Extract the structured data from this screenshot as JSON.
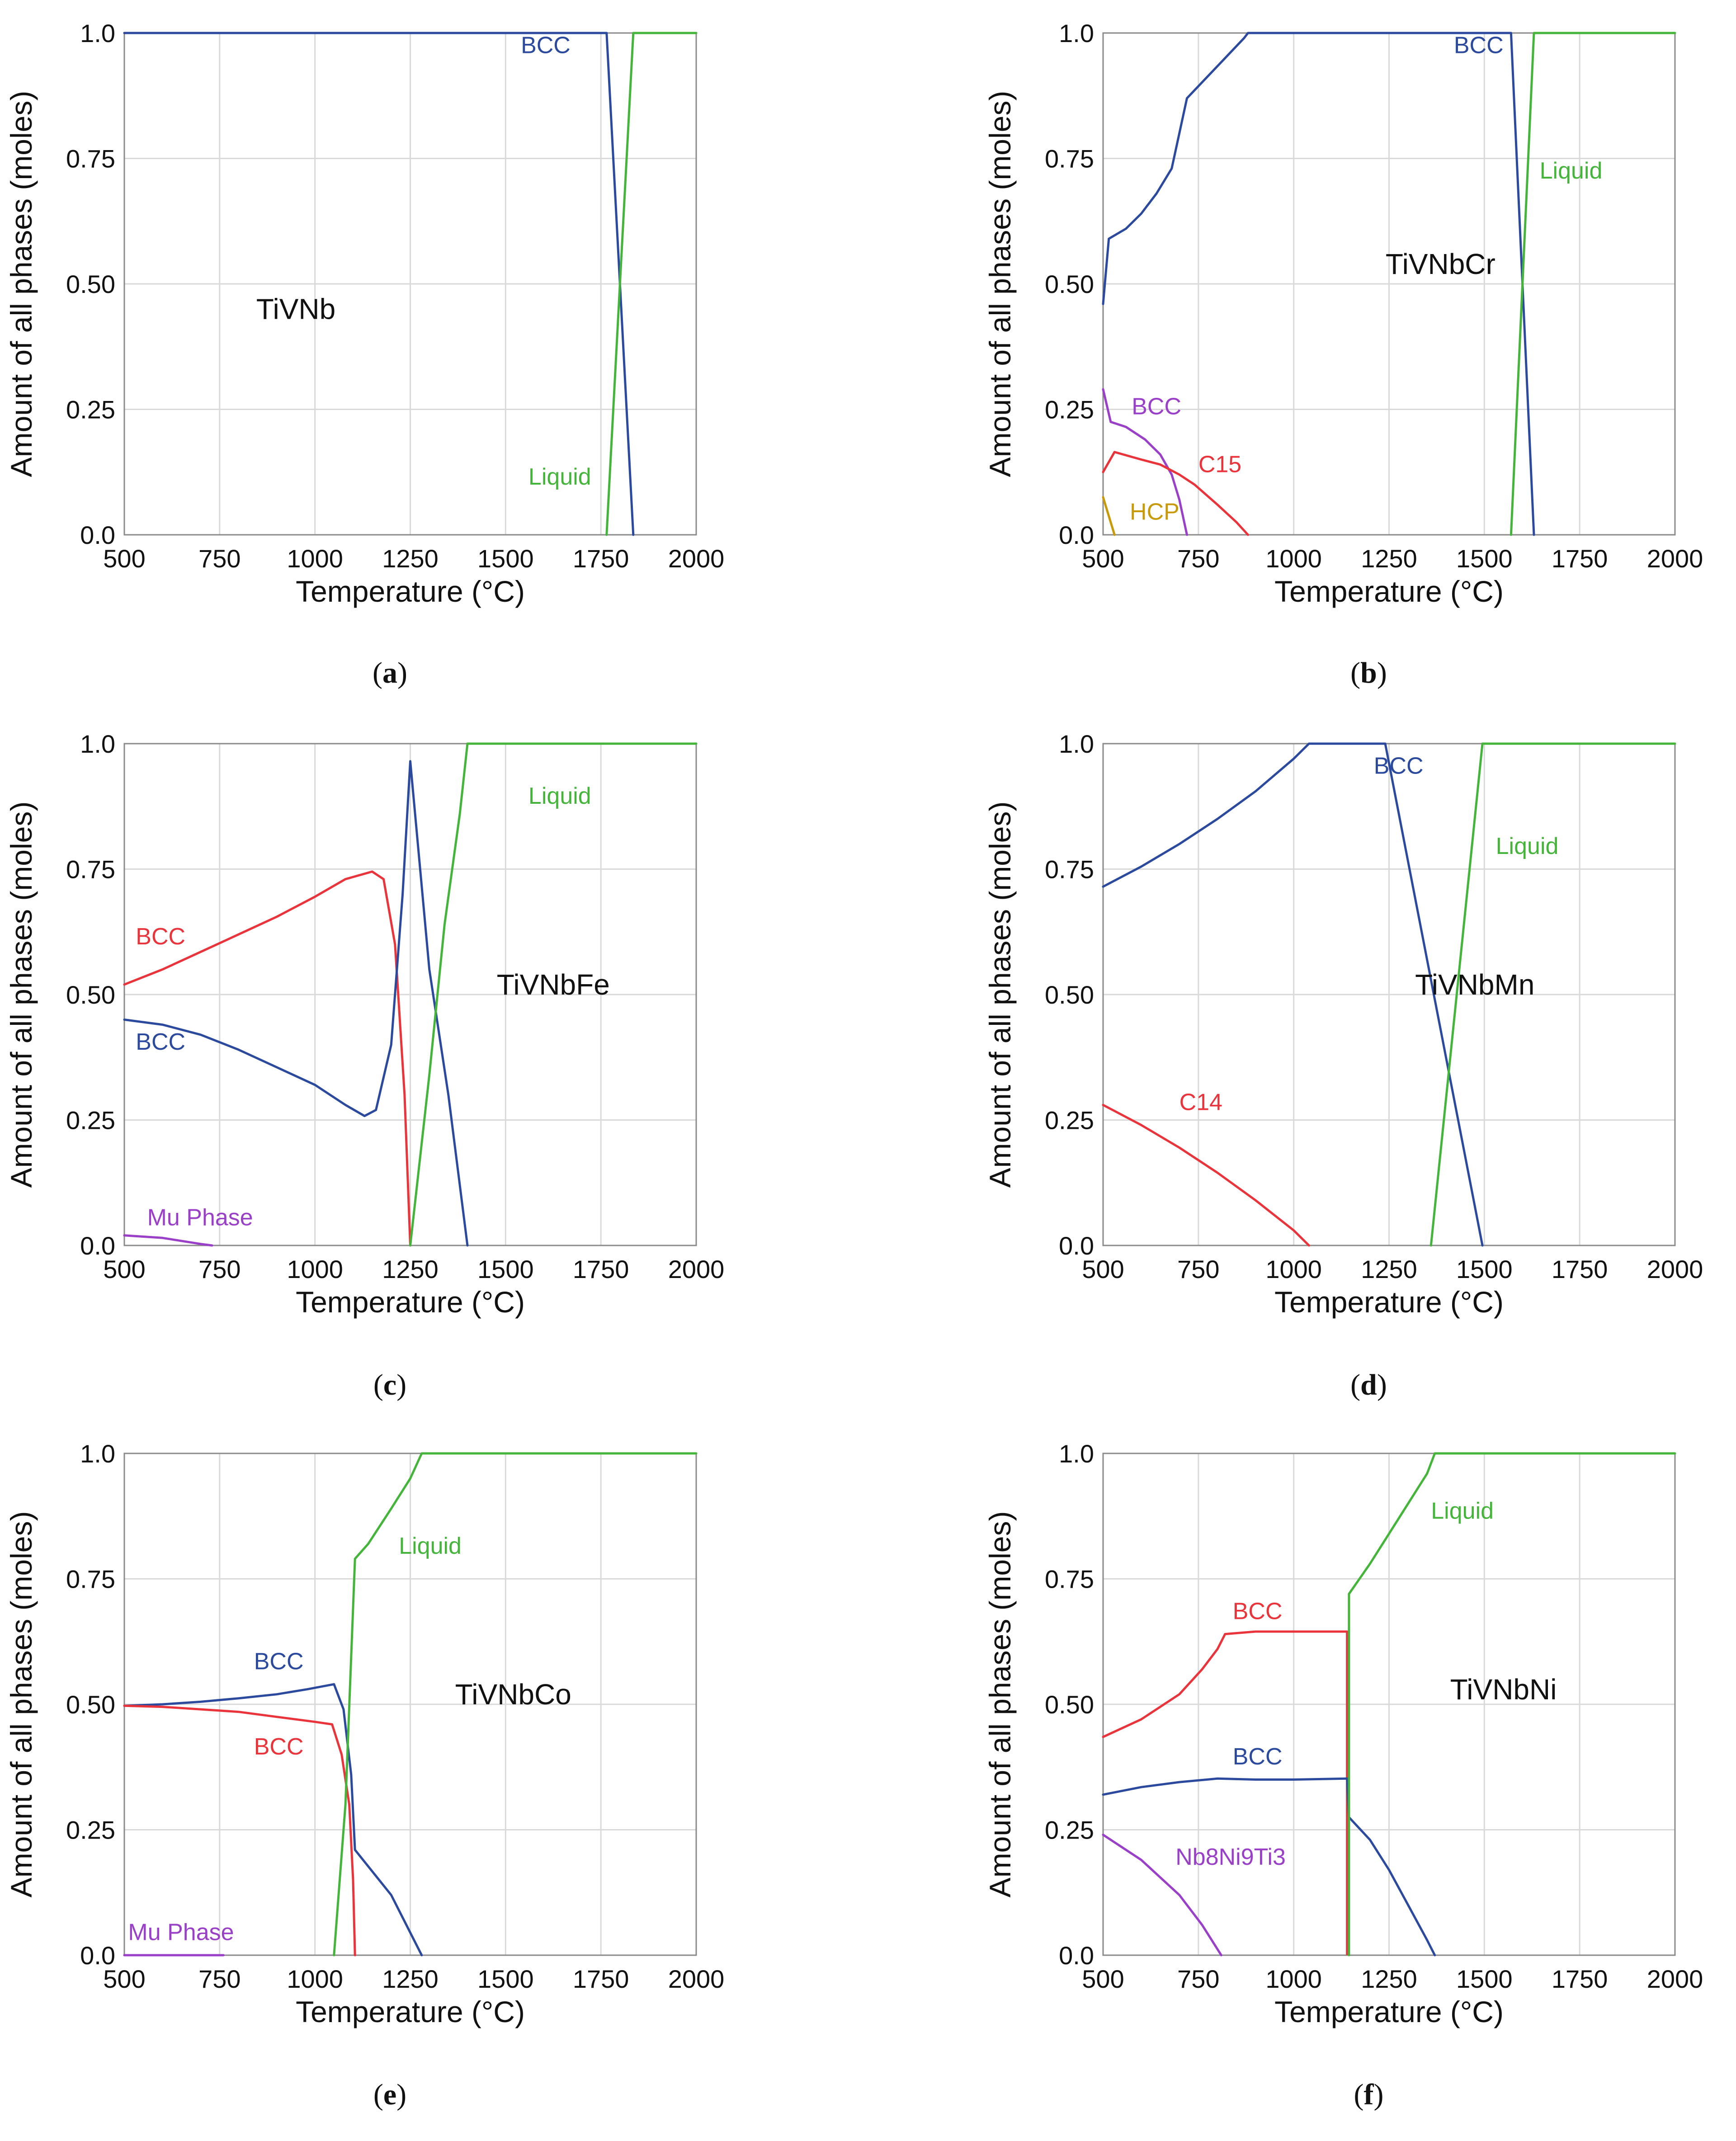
{
  "colors": {
    "blue": "#2b4a9e",
    "green": "#44b53a",
    "red": "#e8343a",
    "purple": "#9a3fc7",
    "hcp": "#c89a0a",
    "grid": "#d9d9d9",
    "axis": "#8a8a8a"
  },
  "chart_data": [
    {
      "panel": "a",
      "caption_prefix": "(",
      "caption_letter": "a",
      "caption_suffix": ")",
      "type": "line",
      "alloy": "TiVNb",
      "xlabel": "Temperature (°C)",
      "ylabel": "Amount of all phases (moles)",
      "xlim": [
        500,
        2000
      ],
      "ylim": [
        0,
        1
      ],
      "xticks": [
        "500",
        "750",
        "1000",
        "1250",
        "1500",
        "1750",
        "2000"
      ],
      "yticks": [
        "0.0",
        "0.25",
        "0.50",
        "0.75",
        "1.0"
      ],
      "grid": true,
      "series": [
        {
          "name": "BCC",
          "color": "blue",
          "label_at": [
            1540,
            0.96
          ],
          "label_anchor": "start",
          "points": [
            [
              500,
              1
            ],
            [
              1765,
              1
            ],
            [
              1835,
              0
            ]
          ]
        },
        {
          "name": "Liquid",
          "color": "green",
          "label_at": [
            1560,
            0.1
          ],
          "label_anchor": "start",
          "points": [
            [
              1765,
              0
            ],
            [
              1835,
              1
            ],
            [
              2000,
              1
            ]
          ]
        }
      ]
    },
    {
      "panel": "b",
      "caption_prefix": "(",
      "caption_letter": "b",
      "caption_suffix": ")",
      "type": "line",
      "alloy": "TiVNbCr",
      "xlabel": "Temperature (°C)",
      "ylabel": "Amount of all phases (moles)",
      "xlim": [
        500,
        2000
      ],
      "ylim": [
        0,
        1
      ],
      "xticks": [
        "500",
        "750",
        "1000",
        "1250",
        "1500",
        "1750",
        "2000"
      ],
      "yticks": [
        "0.0",
        "0.25",
        "0.50",
        "0.75",
        "1.0"
      ],
      "grid": true,
      "series": [
        {
          "name": "BCC",
          "color": "blue",
          "label_at": [
            1420,
            0.96
          ],
          "label_anchor": "start",
          "points": [
            [
              500,
              0.46
            ],
            [
              515,
              0.59
            ],
            [
              560,
              0.61
            ],
            [
              600,
              0.64
            ],
            [
              640,
              0.68
            ],
            [
              680,
              0.73
            ],
            [
              720,
              0.87
            ],
            [
              770,
              0.91
            ],
            [
              820,
              0.95
            ],
            [
              870,
              0.99
            ],
            [
              880,
              1
            ],
            [
              1570,
              1
            ],
            [
              1630,
              0
            ]
          ]
        },
        {
          "name": "Liquid",
          "color": "green",
          "label_at": [
            1645,
            0.71
          ],
          "label_anchor": "start",
          "points": [
            [
              1570,
              0
            ],
            [
              1630,
              1
            ],
            [
              2000,
              1
            ]
          ]
        },
        {
          "name": "BCC",
          "color": "purple",
          "label_at": [
            575,
            0.24
          ],
          "label_anchor": "start",
          "points": [
            [
              500,
              0.29
            ],
            [
              520,
              0.225
            ],
            [
              560,
              0.215
            ],
            [
              610,
              0.19
            ],
            [
              650,
              0.16
            ],
            [
              680,
              0.12
            ],
            [
              700,
              0.07
            ],
            [
              720,
              0
            ]
          ]
        },
        {
          "name": "C15",
          "color": "red",
          "label_at": [
            750,
            0.125
          ],
          "label_anchor": "start",
          "points": [
            [
              500,
              0.125
            ],
            [
              530,
              0.165
            ],
            [
              600,
              0.15
            ],
            [
              650,
              0.14
            ],
            [
              700,
              0.12
            ],
            [
              740,
              0.1
            ],
            [
              800,
              0.06
            ],
            [
              850,
              0.025
            ],
            [
              880,
              0
            ]
          ]
        },
        {
          "name": "HCP",
          "color": "hcp",
          "label_at": [
            570,
            0.03
          ],
          "label_anchor": "start",
          "points": [
            [
              500,
              0.075
            ],
            [
              530,
              0
            ]
          ]
        }
      ]
    },
    {
      "panel": "c",
      "caption_prefix": "(",
      "caption_letter": "c",
      "caption_suffix": ")",
      "type": "line",
      "alloy": "TiVNbFe",
      "xlabel": "Temperature (°C)",
      "ylabel": "Amount of all phases (moles)",
      "xlim": [
        500,
        2000
      ],
      "ylim": [
        0,
        1
      ],
      "xticks": [
        "500",
        "750",
        "1000",
        "1250",
        "1500",
        "1750",
        "2000"
      ],
      "yticks": [
        "0.0",
        "0.25",
        "0.50",
        "0.75",
        "1.0"
      ],
      "grid": true,
      "series": [
        {
          "name": "BCC",
          "color": "red",
          "label_at": [
            530,
            0.6
          ],
          "label_anchor": "start",
          "points": [
            [
              500,
              0.52
            ],
            [
              600,
              0.55
            ],
            [
              700,
              0.585
            ],
            [
              800,
              0.62
            ],
            [
              900,
              0.655
            ],
            [
              1000,
              0.695
            ],
            [
              1080,
              0.73
            ],
            [
              1150,
              0.745
            ],
            [
              1180,
              0.73
            ],
            [
              1210,
              0.6
            ],
            [
              1235,
              0.3
            ],
            [
              1250,
              0
            ]
          ]
        },
        {
          "name": "BCC",
          "color": "blue",
          "label_at": [
            530,
            0.39
          ],
          "label_anchor": "start",
          "points": [
            [
              500,
              0.45
            ],
            [
              600,
              0.44
            ],
            [
              700,
              0.42
            ],
            [
              800,
              0.39
            ],
            [
              900,
              0.355
            ],
            [
              1000,
              0.32
            ],
            [
              1080,
              0.28
            ],
            [
              1130,
              0.258
            ],
            [
              1160,
              0.27
            ],
            [
              1200,
              0.4
            ],
            [
              1230,
              0.7
            ],
            [
              1250,
              0.965
            ],
            [
              1300,
              0.55
            ],
            [
              1350,
              0.3
            ],
            [
              1400,
              0
            ]
          ]
        },
        {
          "name": "Liquid",
          "color": "green",
          "label_at": [
            1560,
            0.88
          ],
          "label_anchor": "start",
          "points": [
            [
              1250,
              0
            ],
            [
              1300,
              0.34
            ],
            [
              1340,
              0.64
            ],
            [
              1380,
              0.86
            ],
            [
              1400,
              1
            ],
            [
              2000,
              1
            ]
          ]
        },
        {
          "name": "Mu Phase",
          "color": "purple",
          "label_at": [
            560,
            0.04
          ],
          "label_anchor": "start",
          "points": [
            [
              500,
              0.02
            ],
            [
              600,
              0.015
            ],
            [
              700,
              0.003
            ],
            [
              730,
              0
            ]
          ]
        }
      ]
    },
    {
      "panel": "d",
      "caption_prefix": "(",
      "caption_letter": "d",
      "caption_suffix": ")",
      "type": "line",
      "alloy": "TiVNbMn",
      "xlabel": "Temperature (°C)",
      "ylabel": "Amount of all phases (moles)",
      "xlim": [
        500,
        2000
      ],
      "ylim": [
        0,
        1
      ],
      "xticks": [
        "500",
        "750",
        "1000",
        "1250",
        "1500",
        "1750",
        "2000"
      ],
      "yticks": [
        "0.0",
        "0.25",
        "0.50",
        "0.75",
        "1.0"
      ],
      "grid": true,
      "series": [
        {
          "name": "BCC",
          "color": "blue",
          "label_at": [
            1210,
            0.94
          ],
          "label_anchor": "start",
          "points": [
            [
              500,
              0.715
            ],
            [
              600,
              0.755
            ],
            [
              700,
              0.8
            ],
            [
              800,
              0.85
            ],
            [
              900,
              0.905
            ],
            [
              1000,
              0.97
            ],
            [
              1040,
              1
            ],
            [
              1240,
              1
            ],
            [
              1495,
              0
            ]
          ]
        },
        {
          "name": "Liquid",
          "color": "green",
          "label_at": [
            1530,
            0.78
          ],
          "label_anchor": "start",
          "points": [
            [
              1360,
              0
            ],
            [
              1495,
              1
            ],
            [
              2000,
              1
            ]
          ]
        },
        {
          "name": "C14",
          "color": "red",
          "label_at": [
            700,
            0.27
          ],
          "label_anchor": "start",
          "points": [
            [
              500,
              0.28
            ],
            [
              600,
              0.24
            ],
            [
              700,
              0.195
            ],
            [
              800,
              0.145
            ],
            [
              900,
              0.09
            ],
            [
              1000,
              0.03
            ],
            [
              1040,
              0
            ]
          ]
        }
      ]
    },
    {
      "panel": "e",
      "caption_prefix": "(",
      "caption_letter": "e",
      "caption_suffix": ")",
      "type": "line",
      "alloy": "TiVNbCo",
      "xlabel": "Temperature (°C)",
      "ylabel": "Amount of all phases (moles)",
      "xlim": [
        500,
        2000
      ],
      "ylim": [
        0,
        1
      ],
      "xticks": [
        "500",
        "750",
        "1000",
        "1250",
        "1500",
        "1750",
        "2000"
      ],
      "yticks": [
        "0.0",
        "0.25",
        "0.50",
        "0.75",
        "1.0"
      ],
      "grid": true,
      "series": [
        {
          "name": "BCC",
          "color": "blue",
          "label_at": [
            840,
            0.57
          ],
          "label_anchor": "start",
          "points": [
            [
              500,
              0.497
            ],
            [
              600,
              0.5
            ],
            [
              700,
              0.505
            ],
            [
              800,
              0.512
            ],
            [
              900,
              0.52
            ],
            [
              980,
              0.53
            ],
            [
              1050,
              0.54
            ],
            [
              1075,
              0.49
            ],
            [
              1095,
              0.36
            ],
            [
              1105,
              0.21
            ],
            [
              1200,
              0.12
            ],
            [
              1280,
              0
            ]
          ]
        },
        {
          "name": "BCC",
          "color": "red",
          "label_at": [
            840,
            0.4
          ],
          "label_anchor": "start",
          "points": [
            [
              500,
              0.497
            ],
            [
              600,
              0.495
            ],
            [
              700,
              0.49
            ],
            [
              800,
              0.485
            ],
            [
              900,
              0.475
            ],
            [
              1000,
              0.465
            ],
            [
              1045,
              0.46
            ],
            [
              1070,
              0.4
            ],
            [
              1090,
              0.3
            ],
            [
              1100,
              0.15
            ],
            [
              1105,
              0
            ]
          ]
        },
        {
          "name": "Liquid",
          "color": "green",
          "label_at": [
            1220,
            0.8
          ],
          "label_anchor": "start",
          "points": [
            [
              1050,
              0
            ],
            [
              1080,
              0.3
            ],
            [
              1105,
              0.79
            ],
            [
              1140,
              0.82
            ],
            [
              1200,
              0.89
            ],
            [
              1250,
              0.95
            ],
            [
              1280,
              1
            ],
            [
              2000,
              1
            ]
          ]
        },
        {
          "name": "Mu Phase",
          "color": "purple",
          "label_at": [
            510,
            0.03
          ],
          "label_anchor": "start",
          "points": [
            [
              500,
              0
            ],
            [
              760,
              0
            ]
          ]
        }
      ]
    },
    {
      "panel": "f",
      "caption_prefix": "(",
      "caption_letter": "f",
      "caption_suffix": ")",
      "type": "line",
      "alloy": "TiVNbNi",
      "xlabel": "Temperature (°C)",
      "ylabel": "Amount of all phases (moles)",
      "xlim": [
        500,
        2000
      ],
      "ylim": [
        0,
        1
      ],
      "xticks": [
        "500",
        "750",
        "1000",
        "1250",
        "1500",
        "1750",
        "2000"
      ],
      "yticks": [
        "0.0",
        "0.25",
        "0.50",
        "0.75",
        "1.0"
      ],
      "grid": true,
      "series": [
        {
          "name": "BCC",
          "color": "red",
          "label_at": [
            840,
            0.67
          ],
          "label_anchor": "start",
          "points": [
            [
              500,
              0.435
            ],
            [
              600,
              0.47
            ],
            [
              700,
              0.52
            ],
            [
              760,
              0.57
            ],
            [
              800,
              0.61
            ],
            [
              820,
              0.64
            ],
            [
              900,
              0.645
            ],
            [
              1000,
              0.645
            ],
            [
              1130,
              0.645
            ],
            [
              1140,
              0.645
            ],
            [
              1140,
              0.002
            ]
          ]
        },
        {
          "name": "BCC",
          "color": "blue",
          "label_at": [
            840,
            0.38
          ],
          "label_anchor": "start",
          "points": [
            [
              500,
              0.32
            ],
            [
              600,
              0.335
            ],
            [
              700,
              0.345
            ],
            [
              800,
              0.352
            ],
            [
              900,
              0.35
            ],
            [
              1000,
              0.35
            ],
            [
              1140,
              0.352
            ],
            [
              1145,
              0.275
            ],
            [
              1200,
              0.23
            ],
            [
              1250,
              0.17
            ],
            [
              1300,
              0.1
            ],
            [
              1350,
              0.03
            ],
            [
              1370,
              0
            ]
          ]
        },
        {
          "name": "Liquid",
          "color": "green",
          "label_at": [
            1360,
            0.87
          ],
          "label_anchor": "start",
          "points": [
            [
              1145,
              0
            ],
            [
              1145,
              0.72
            ],
            [
              1200,
              0.78
            ],
            [
              1250,
              0.84
            ],
            [
              1300,
              0.9
            ],
            [
              1350,
              0.96
            ],
            [
              1370,
              1
            ],
            [
              2000,
              1
            ]
          ]
        },
        {
          "name": "Nb8Ni9Ti3",
          "color": "purple",
          "label_at": [
            690,
            0.18
          ],
          "label_anchor": "start",
          "points": [
            [
              500,
              0.24
            ],
            [
              600,
              0.19
            ],
            [
              700,
              0.12
            ],
            [
              760,
              0.06
            ],
            [
              810,
              0
            ]
          ]
        }
      ]
    }
  ]
}
